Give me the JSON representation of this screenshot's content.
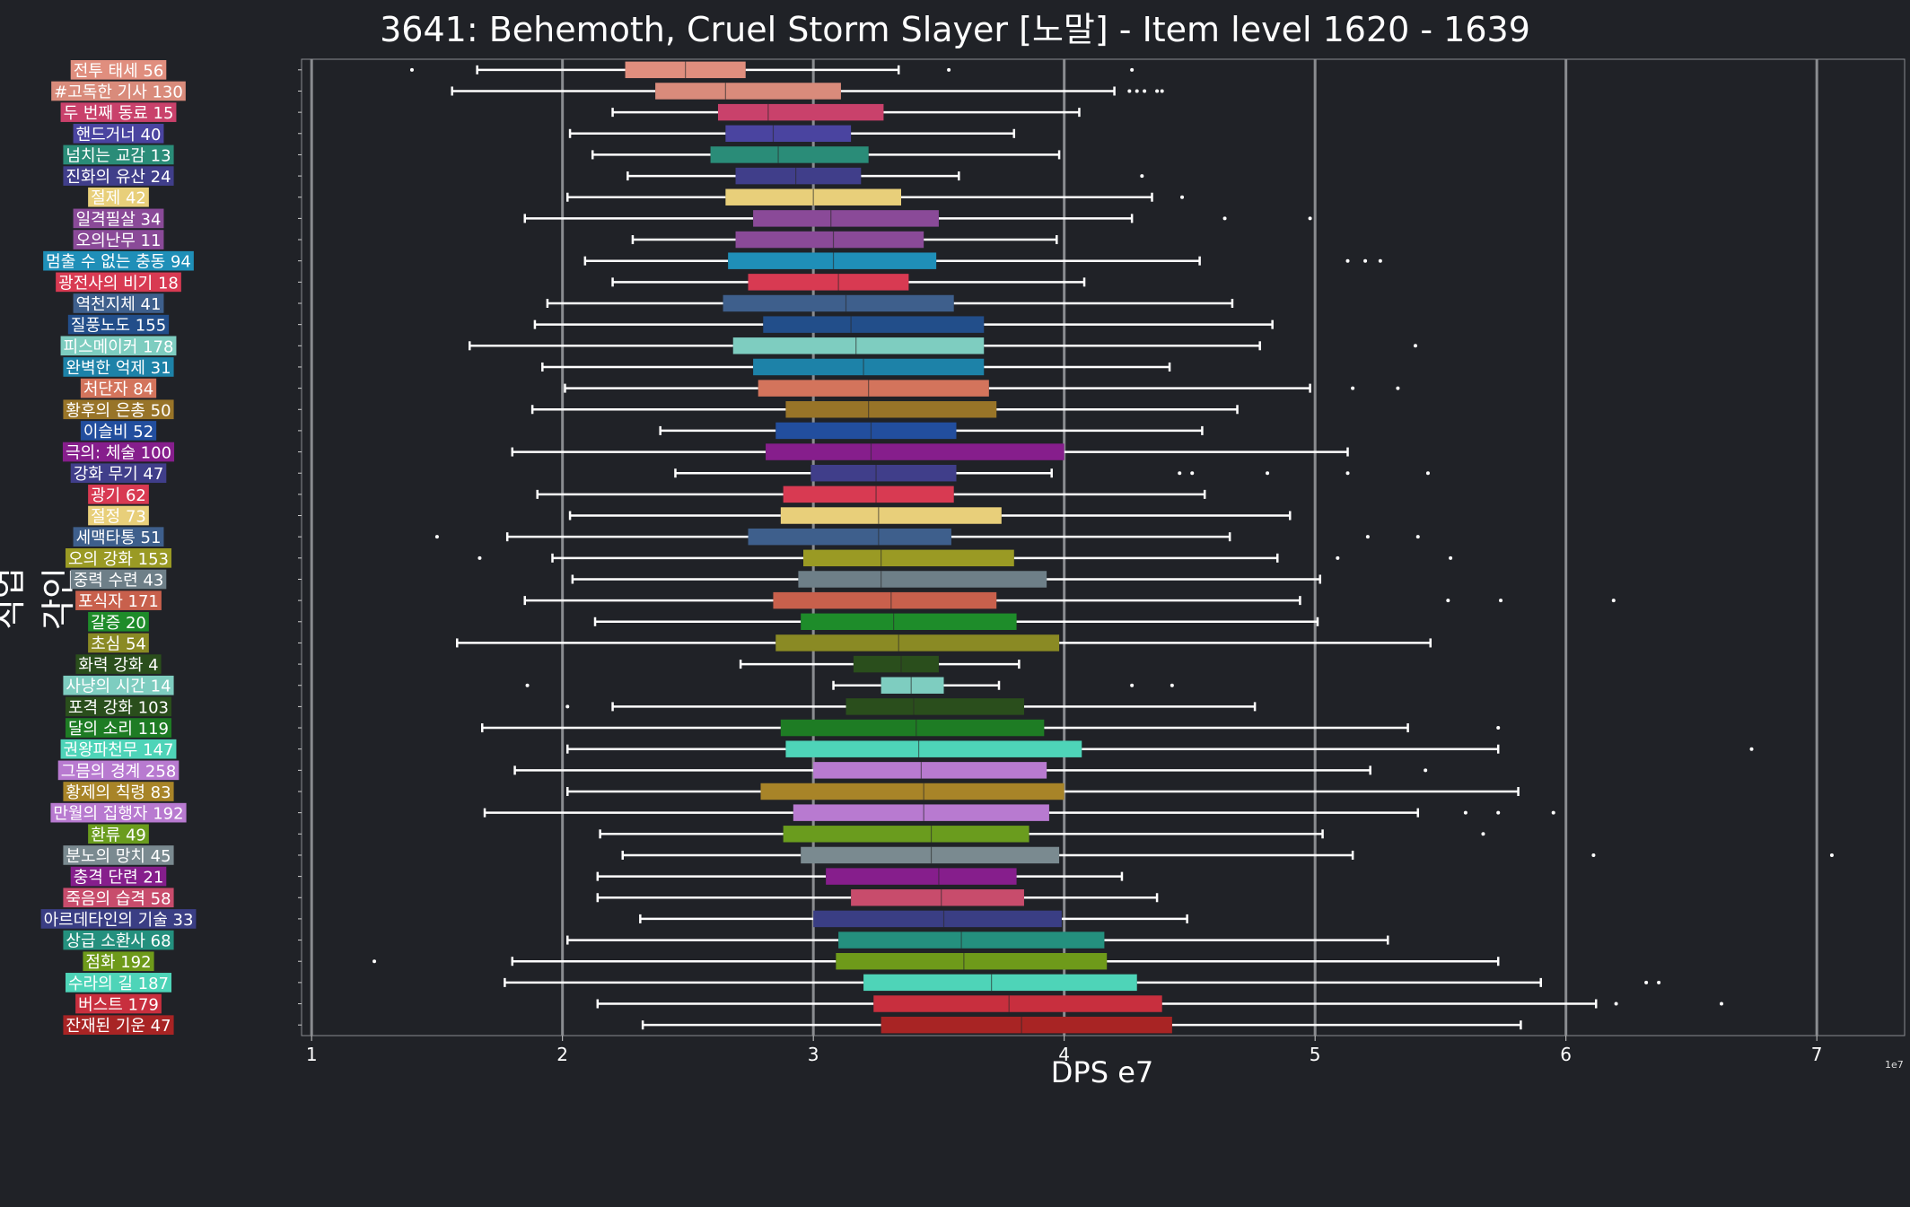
{
  "chart_data": {
    "type": "boxplot",
    "title": "3641: Behemoth, Cruel Storm Slayer [노말] - Item level 1620 - 1639",
    "xlabel": "DPS e7",
    "ylabel": "직업각인",
    "x_scale_note": "1e7",
    "xlim": [
      0.96,
      7.35
    ],
    "xticks": [
      "1",
      "2",
      "3",
      "4",
      "5",
      "6",
      "7"
    ],
    "grid": true,
    "categories": [
      {
        "label": "전투 태세 56",
        "color": "#e08e7e",
        "whislo": 1.66,
        "q1": 2.25,
        "med": 2.49,
        "q3": 2.73,
        "whishi": 3.34,
        "fliers": [
          1.4,
          3.54,
          4.27
        ]
      },
      {
        "label": "#고독한 기사 130",
        "color": "#d98b7b",
        "whislo": 1.56,
        "q1": 2.37,
        "med": 2.65,
        "q3": 3.11,
        "whishi": 4.2,
        "fliers": [
          4.26,
          4.29,
          4.32,
          4.37,
          4.39
        ]
      },
      {
        "label": "두 번째 동료 15",
        "color": "#c9416b",
        "whislo": 2.2,
        "q1": 2.62,
        "med": 2.82,
        "q3": 3.28,
        "whishi": 4.06,
        "fliers": []
      },
      {
        "label": "핸드거너 40",
        "color": "#4a44a0",
        "whislo": 2.03,
        "q1": 2.65,
        "med": 2.84,
        "q3": 3.15,
        "whishi": 3.8,
        "fliers": []
      },
      {
        "label": "넘치는 교감 13",
        "color": "#2a8c78",
        "whislo": 2.12,
        "q1": 2.59,
        "med": 2.86,
        "q3": 3.22,
        "whishi": 3.98,
        "fliers": []
      },
      {
        "label": "진화의 유산 24",
        "color": "#403e8a",
        "whislo": 2.26,
        "q1": 2.69,
        "med": 2.93,
        "q3": 3.19,
        "whishi": 3.58,
        "fliers": [
          4.31
        ]
      },
      {
        "label": "절제 42",
        "color": "#e8cf7a",
        "whislo": 2.02,
        "q1": 2.65,
        "med": 3.0,
        "q3": 3.35,
        "whishi": 4.35,
        "fliers": [
          4.47
        ]
      },
      {
        "label": "일격필살 34",
        "color": "#8a4a98",
        "whislo": 1.85,
        "q1": 2.76,
        "med": 3.07,
        "q3": 3.5,
        "whishi": 4.27,
        "fliers": [
          4.64,
          4.98
        ]
      },
      {
        "label": "오의난무 11",
        "color": "#8a4a98",
        "whislo": 2.28,
        "q1": 2.69,
        "med": 3.08,
        "q3": 3.44,
        "whishi": 3.97,
        "fliers": []
      },
      {
        "label": "멈출 수 없는 충동 94",
        "color": "#1f8fb8",
        "whislo": 2.09,
        "q1": 2.66,
        "med": 3.08,
        "q3": 3.49,
        "whishi": 4.54,
        "fliers": [
          5.13,
          5.2,
          5.26
        ]
      },
      {
        "label": "광전사의 비기 18",
        "color": "#d83a52",
        "whislo": 2.2,
        "q1": 2.74,
        "med": 3.1,
        "q3": 3.38,
        "whishi": 4.08,
        "fliers": []
      },
      {
        "label": "역천지체 41",
        "color": "#3e5f8c",
        "whislo": 1.94,
        "q1": 2.64,
        "med": 3.13,
        "q3": 3.56,
        "whishi": 4.67,
        "fliers": []
      },
      {
        "label": "질풍노도 155",
        "color": "#224e8a",
        "whislo": 1.89,
        "q1": 2.8,
        "med": 3.15,
        "q3": 3.68,
        "whishi": 4.83,
        "fliers": []
      },
      {
        "label": "피스메이커 178",
        "color": "#7ecdc0",
        "whislo": 1.63,
        "q1": 2.68,
        "med": 3.17,
        "q3": 3.68,
        "whishi": 4.78,
        "fliers": [
          5.4
        ]
      },
      {
        "label": "완벽한 억제 31",
        "color": "#1d82a8",
        "whislo": 1.92,
        "q1": 2.76,
        "med": 3.2,
        "q3": 3.68,
        "whishi": 4.42,
        "fliers": []
      },
      {
        "label": "처단자 84",
        "color": "#d3745c",
        "whislo": 2.01,
        "q1": 2.78,
        "med": 3.22,
        "q3": 3.7,
        "whishi": 4.98,
        "fliers": [
          5.15,
          5.33
        ]
      },
      {
        "label": "황후의 은총 50",
        "color": "#987428",
        "whislo": 1.88,
        "q1": 2.89,
        "med": 3.22,
        "q3": 3.73,
        "whishi": 4.69,
        "fliers": []
      },
      {
        "label": "이슬비 52",
        "color": "#224e9e",
        "whislo": 2.39,
        "q1": 2.85,
        "med": 3.23,
        "q3": 3.57,
        "whishi": 4.55,
        "fliers": []
      },
      {
        "label": "극의: 체술 100",
        "color": "#861e8c",
        "whislo": 1.8,
        "q1": 2.81,
        "med": 3.23,
        "q3": 4.0,
        "whishi": 5.13,
        "fliers": []
      },
      {
        "label": "강화 무기 47",
        "color": "#403e8a",
        "whislo": 2.45,
        "q1": 2.99,
        "med": 3.25,
        "q3": 3.57,
        "whishi": 3.95,
        "fliers": [
          4.46,
          4.51,
          4.81,
          5.13,
          5.45
        ]
      },
      {
        "label": "광기 62",
        "color": "#d83a52",
        "whislo": 1.9,
        "q1": 2.88,
        "med": 3.25,
        "q3": 3.56,
        "whishi": 4.56,
        "fliers": []
      },
      {
        "label": "절정 73",
        "color": "#e8cf7a",
        "whislo": 2.03,
        "q1": 2.87,
        "med": 3.26,
        "q3": 3.75,
        "whishi": 4.9,
        "fliers": []
      },
      {
        "label": "세맥타통 51",
        "color": "#3e5f8c",
        "whislo": 1.78,
        "q1": 2.74,
        "med": 3.26,
        "q3": 3.55,
        "whishi": 4.66,
        "fliers": [
          1.5,
          5.21,
          5.41
        ]
      },
      {
        "label": "오의 강화 153",
        "color": "#9a9a24",
        "whislo": 1.96,
        "q1": 2.96,
        "med": 3.27,
        "q3": 3.8,
        "whishi": 4.85,
        "fliers": [
          1.67,
          5.09,
          5.54
        ]
      },
      {
        "label": "중력 수련 43",
        "color": "#6e7f88",
        "whislo": 2.04,
        "q1": 2.94,
        "med": 3.27,
        "q3": 3.93,
        "whishi": 5.02,
        "fliers": []
      },
      {
        "label": "포식자 171",
        "color": "#c8604c",
        "whislo": 1.85,
        "q1": 2.84,
        "med": 3.31,
        "q3": 3.73,
        "whishi": 4.94,
        "fliers": [
          5.53,
          5.74,
          6.19
        ]
      },
      {
        "label": "갈증 20",
        "color": "#1e8c2a",
        "whislo": 2.13,
        "q1": 2.95,
        "med": 3.32,
        "q3": 3.81,
        "whishi": 5.01,
        "fliers": []
      },
      {
        "label": "초심 54",
        "color": "#8a8a24",
        "whislo": 1.58,
        "q1": 2.85,
        "med": 3.34,
        "q3": 3.98,
        "whishi": 5.46,
        "fliers": []
      },
      {
        "label": "화력 강화 4",
        "color": "#2a4e1c",
        "whislo": 2.71,
        "q1": 3.16,
        "med": 3.35,
        "q3": 3.5,
        "whishi": 3.82,
        "fliers": []
      },
      {
        "label": "사냥의 시간 14",
        "color": "#7ecdc0",
        "whislo": 3.08,
        "q1": 3.27,
        "med": 3.39,
        "q3": 3.52,
        "whishi": 3.74,
        "fliers": [
          1.86,
          4.27,
          4.43
        ]
      },
      {
        "label": "포격 강화 103",
        "color": "#2a4e1c",
        "whislo": 2.2,
        "q1": 3.13,
        "med": 3.4,
        "q3": 3.84,
        "whishi": 4.76,
        "fliers": [
          2.02
        ]
      },
      {
        "label": "달의 소리 119",
        "color": "#1e7c24",
        "whislo": 1.68,
        "q1": 2.87,
        "med": 3.41,
        "q3": 3.92,
        "whishi": 5.37,
        "fliers": [
          5.73
        ]
      },
      {
        "label": "권왕파천무 147",
        "color": "#4ed4b8",
        "whislo": 2.02,
        "q1": 2.89,
        "med": 3.42,
        "q3": 4.07,
        "whishi": 5.73,
        "fliers": [
          6.74
        ]
      },
      {
        "label": "그믐의 경계 258",
        "color": "#b87ad0",
        "whislo": 1.81,
        "q1": 3.0,
        "med": 3.43,
        "q3": 3.93,
        "whishi": 5.22,
        "fliers": [
          5.44
        ]
      },
      {
        "label": "황제의 칙령 83",
        "color": "#a88428",
        "whislo": 2.02,
        "q1": 2.79,
        "med": 3.44,
        "q3": 4.0,
        "whishi": 5.81,
        "fliers": []
      },
      {
        "label": "만월의 집행자 192",
        "color": "#b87ad0",
        "whislo": 1.69,
        "q1": 2.92,
        "med": 3.44,
        "q3": 3.94,
        "whishi": 5.41,
        "fliers": [
          5.6,
          5.73,
          5.95
        ]
      },
      {
        "label": "환류 49",
        "color": "#6a9c1e",
        "whislo": 2.15,
        "q1": 2.88,
        "med": 3.47,
        "q3": 3.86,
        "whishi": 5.03,
        "fliers": [
          5.67
        ]
      },
      {
        "label": "분노의 망치 45",
        "color": "#7a8a90",
        "whislo": 2.24,
        "q1": 2.95,
        "med": 3.47,
        "q3": 3.98,
        "whishi": 5.15,
        "fliers": [
          6.11,
          7.06
        ]
      },
      {
        "label": "충격 단련 21",
        "color": "#861e8c",
        "whislo": 2.14,
        "q1": 3.05,
        "med": 3.5,
        "q3": 3.81,
        "whishi": 4.23,
        "fliers": []
      },
      {
        "label": "죽음의 습격 58",
        "color": "#c84c6c",
        "whislo": 2.14,
        "q1": 3.15,
        "med": 3.51,
        "q3": 3.84,
        "whishi": 4.37,
        "fliers": []
      },
      {
        "label": "아르데타인의 기술 33",
        "color": "#3a3e84",
        "whislo": 2.31,
        "q1": 3.0,
        "med": 3.52,
        "q3": 3.99,
        "whishi": 4.49,
        "fliers": []
      },
      {
        "label": "상급 소환사 68",
        "color": "#24907e",
        "whislo": 2.02,
        "q1": 3.1,
        "med": 3.59,
        "q3": 4.16,
        "whishi": 5.29,
        "fliers": []
      },
      {
        "label": "점화 192",
        "color": "#6e9a1a",
        "whislo": 1.8,
        "q1": 3.09,
        "med": 3.6,
        "q3": 4.17,
        "whishi": 5.73,
        "fliers": [
          1.25
        ]
      },
      {
        "label": "수라의 길 187",
        "color": "#4ed4b8",
        "whislo": 1.77,
        "q1": 3.2,
        "med": 3.71,
        "q3": 4.29,
        "whishi": 5.9,
        "fliers": [
          6.32,
          6.37
        ]
      },
      {
        "label": "버스트 179",
        "color": "#c82f3e",
        "whislo": 2.14,
        "q1": 3.24,
        "med": 3.78,
        "q3": 4.39,
        "whishi": 6.12,
        "fliers": [
          6.2,
          6.62
        ]
      },
      {
        "label": "잔재된 기운 47",
        "color": "#a82424",
        "whislo": 2.32,
        "q1": 3.27,
        "med": 3.83,
        "q3": 4.43,
        "whishi": 5.82,
        "fliers": []
      }
    ]
  }
}
